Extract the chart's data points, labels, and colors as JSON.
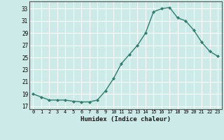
{
  "x": [
    0,
    1,
    2,
    3,
    4,
    5,
    6,
    7,
    8,
    9,
    10,
    11,
    12,
    13,
    14,
    15,
    16,
    17,
    18,
    19,
    20,
    21,
    22,
    23
  ],
  "y": [
    19.0,
    18.5,
    18.0,
    18.0,
    18.0,
    17.8,
    17.7,
    17.7,
    18.0,
    19.5,
    21.5,
    24.0,
    25.5,
    27.0,
    29.0,
    32.5,
    33.0,
    33.2,
    31.5,
    31.0,
    29.5,
    27.5,
    26.0,
    25.2
  ],
  "xlabel": "Humidex (Indice chaleur)",
  "xticks": [
    0,
    1,
    2,
    3,
    4,
    5,
    6,
    7,
    8,
    9,
    10,
    11,
    12,
    13,
    14,
    15,
    16,
    17,
    18,
    19,
    20,
    21,
    22,
    23
  ],
  "yticks": [
    17,
    19,
    21,
    23,
    25,
    27,
    29,
    31,
    33
  ],
  "ylim": [
    16.5,
    34.2
  ],
  "xlim": [
    -0.5,
    23.5
  ],
  "line_color": "#2e7d6e",
  "bg_color": "#cceae7",
  "grid_color": "#ffffff",
  "marker": "D",
  "marker_size": 2.2,
  "line_width": 1.0
}
